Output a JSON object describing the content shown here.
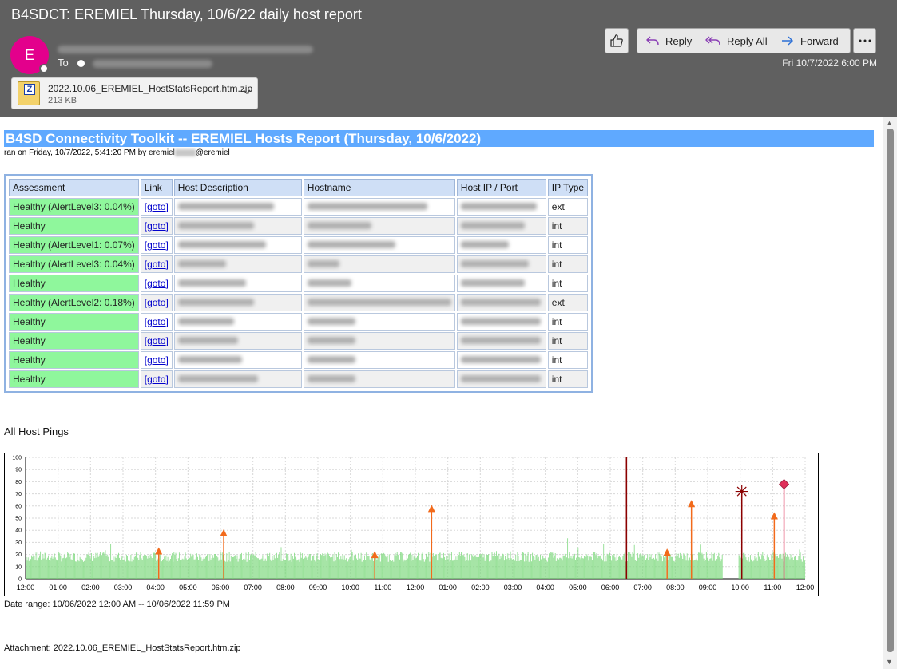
{
  "mail": {
    "subject": "B4SDCT: EREMIEL Thursday, 10/6/22 daily host report",
    "avatar_letter": "E",
    "to_label": "To",
    "date": "Fri 10/7/2022 6:00 PM",
    "attachment": {
      "name": "2022.10.06_EREMIEL_HostStatsReport.htm.zip",
      "size": "213 KB",
      "icon": "zip-file-icon"
    },
    "toolbar": {
      "reply": "Reply",
      "reply_all": "Reply All",
      "forward": "Forward"
    },
    "colors": {
      "avatar": "#e3008c",
      "header_bg": "#606060"
    }
  },
  "report": {
    "banner": "B4SD Connectivity Toolkit -- EREMIEL Hosts Report (Thursday, 10/6/2022)",
    "ran_on_prefix": "ran on Friday, 10/7/2022, 5:41:20 PM by eremiel",
    "ran_on_suffix": "@eremiel",
    "table": {
      "headers": [
        "Assessment",
        "Link",
        "Host Description",
        "Hostname",
        "Host IP / Port",
        "IP Type"
      ],
      "rows": [
        {
          "assessment": "Healthy (AlertLevel3: 0.04%)",
          "link": "[goto]",
          "ip_type": "ext"
        },
        {
          "assessment": "Healthy",
          "link": "[goto]",
          "ip_type": "int"
        },
        {
          "assessment": "Healthy (AlertLevel1: 0.07%)",
          "link": "[goto]",
          "ip_type": "int"
        },
        {
          "assessment": "Healthy (AlertLevel3: 0.04%)",
          "link": "[goto]",
          "ip_type": "int"
        },
        {
          "assessment": "Healthy",
          "link": "[goto]",
          "ip_type": "int"
        },
        {
          "assessment": "Healthy (AlertLevel2: 0.18%)",
          "link": "[goto]",
          "ip_type": "ext"
        },
        {
          "assessment": "Healthy",
          "link": "[goto]",
          "ip_type": "int"
        },
        {
          "assessment": "Healthy",
          "link": "[goto]",
          "ip_type": "int"
        },
        {
          "assessment": "Healthy",
          "link": "[goto]",
          "ip_type": "int"
        },
        {
          "assessment": "Healthy",
          "link": "[goto]",
          "ip_type": "int"
        }
      ]
    },
    "pings_title": "All Host Pings",
    "date_range": "Date range: 10/06/2022 12:00 AM -- 10/06/2022 11:59 PM",
    "attachment_line": "Attachment: 2022.10.06_EREMIEL_HostStatsReport.htm.zip"
  },
  "chart_data": {
    "type": "area",
    "ylim": [
      0,
      100
    ],
    "y_ticks": [
      0,
      10,
      20,
      30,
      40,
      50,
      60,
      70,
      80,
      90,
      100
    ],
    "x_ticks": [
      "12:00",
      "01:00",
      "02:00",
      "03:00",
      "04:00",
      "05:00",
      "06:00",
      "07:00",
      "08:00",
      "09:00",
      "10:00",
      "11:00",
      "12:00",
      "01:00",
      "02:00",
      "03:00",
      "04:00",
      "05:00",
      "06:00",
      "07:00",
      "08:00",
      "09:00",
      "10:00",
      "11:00",
      "12:00"
    ],
    "grid": true,
    "baseline_ping_ms": 18,
    "gap_hours": [
      21.45,
      21.95
    ],
    "spike_markers": [
      {
        "hour": 4.1,
        "value": 22,
        "marker": "triangle",
        "color": "#f26a1b"
      },
      {
        "hour": 6.1,
        "value": 37,
        "marker": "triangle",
        "color": "#f26a1b"
      },
      {
        "hour": 10.75,
        "value": 19,
        "marker": "triangle",
        "color": "#f26a1b"
      },
      {
        "hour": 12.5,
        "value": 57,
        "marker": "triangle",
        "color": "#f26a1b"
      },
      {
        "hour": 19.75,
        "value": 21,
        "marker": "triangle",
        "color": "#f26a1b"
      },
      {
        "hour": 20.5,
        "value": 61,
        "marker": "triangle",
        "color": "#f26a1b"
      },
      {
        "hour": 23.05,
        "value": 51,
        "marker": "triangle",
        "color": "#f26a1b"
      },
      {
        "hour": 22.05,
        "value": 72,
        "marker": "star",
        "color": "#8b0000"
      },
      {
        "hour": 23.35,
        "value": 78,
        "marker": "diamond",
        "color": "#e0305a"
      }
    ],
    "outage_lines": [
      {
        "hour": 18.5,
        "value": 100,
        "color": "#8b0000"
      }
    ],
    "series_color": "#7dd87d"
  }
}
